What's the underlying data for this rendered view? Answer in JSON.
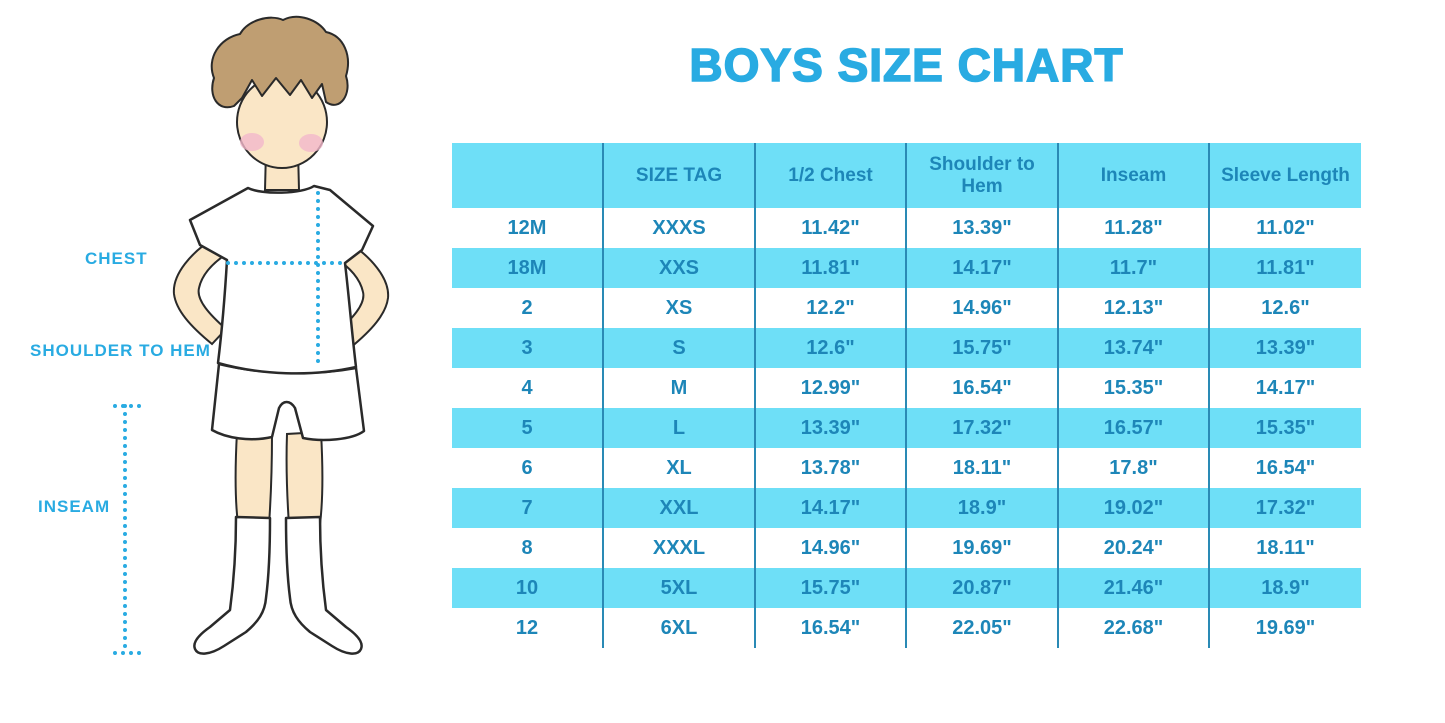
{
  "page": {
    "title": "BOYS SIZE CHART"
  },
  "figure": {
    "labels": {
      "chest": "CHEST",
      "shoulder_to_hem": "SHOULDER TO HEM",
      "inseam": "INSEAM"
    }
  },
  "table": {
    "headers": [
      "",
      "SIZE TAG",
      "1/2 Chest",
      "Shoulder to Hem",
      "Inseam",
      "Sleeve Length"
    ],
    "rows": [
      {
        "cells": [
          "12M",
          "XXXS",
          "11.42\"",
          "13.39\"",
          "11.28\"",
          "11.02\""
        ]
      },
      {
        "cells": [
          "18M",
          "XXS",
          "11.81\"",
          "14.17\"",
          "11.7\"",
          "11.81\""
        ]
      },
      {
        "cells": [
          "2",
          "XS",
          "12.2\"",
          "14.96\"",
          "12.13\"",
          "12.6\""
        ]
      },
      {
        "cells": [
          "3",
          "S",
          "12.6\"",
          "15.75\"",
          "13.74\"",
          "13.39\""
        ]
      },
      {
        "cells": [
          "4",
          "M",
          "12.99\"",
          "16.54\"",
          "15.35\"",
          "14.17\""
        ]
      },
      {
        "cells": [
          "5",
          "L",
          "13.39\"",
          "17.32\"",
          "16.57\"",
          "15.35\""
        ]
      },
      {
        "cells": [
          "6",
          "XL",
          "13.78\"",
          "18.11\"",
          "17.8\"",
          "16.54\""
        ]
      },
      {
        "cells": [
          "7",
          "XXL",
          "14.17\"",
          "18.9\"",
          "19.02\"",
          "17.32\""
        ]
      },
      {
        "cells": [
          "8",
          "XXXL",
          "14.96\"",
          "19.69\"",
          "20.24\"",
          "18.11\""
        ]
      },
      {
        "cells": [
          "10",
          "5XL",
          "15.75\"",
          "20.87\"",
          "21.46\"",
          "18.9\""
        ]
      },
      {
        "cells": [
          "12",
          "6XL",
          "16.54\"",
          "22.05\"",
          "22.68\"",
          "19.69\""
        ]
      }
    ]
  },
  "colors": {
    "accent_blue": "#29abe2",
    "table_fill": "#6edff7",
    "table_line": "#2a8ab5",
    "table_text": "#1d86b8",
    "skin": "#fae6c6",
    "hair": "#bf9e72",
    "blush": "#f3b8ca",
    "outline": "#2a2a2a"
  },
  "chart_data": {
    "type": "table",
    "title": "BOYS SIZE CHART",
    "columns": [
      "",
      "SIZE TAG",
      "1/2 Chest",
      "Shoulder to Hem",
      "Inseam",
      "Sleeve Length"
    ],
    "rows": [
      [
        "12M",
        "XXXS",
        "11.42\"",
        "13.39\"",
        "11.28\"",
        "11.02\""
      ],
      [
        "18M",
        "XXS",
        "11.81\"",
        "14.17\"",
        "11.7\"",
        "11.81\""
      ],
      [
        "2",
        "XS",
        "12.2\"",
        "14.96\"",
        "12.13\"",
        "12.6\""
      ],
      [
        "3",
        "S",
        "12.6\"",
        "15.75\"",
        "13.74\"",
        "13.39\""
      ],
      [
        "4",
        "M",
        "12.99\"",
        "16.54\"",
        "15.35\"",
        "14.17\""
      ],
      [
        "5",
        "L",
        "13.39\"",
        "17.32\"",
        "16.57\"",
        "15.35\""
      ],
      [
        "6",
        "XL",
        "13.78\"",
        "18.11\"",
        "17.8\"",
        "16.54\""
      ],
      [
        "7",
        "XXL",
        "14.17\"",
        "18.9\"",
        "19.02\"",
        "17.32\""
      ],
      [
        "8",
        "XXXL",
        "14.96\"",
        "19.69\"",
        "20.24\"",
        "18.11\""
      ],
      [
        "10",
        "5XL",
        "15.75\"",
        "20.87\"",
        "21.46\"",
        "18.9\""
      ],
      [
        "12",
        "6XL",
        "16.54\"",
        "22.05\"",
        "22.68\"",
        "19.69\""
      ]
    ],
    "measurement_guides": [
      "CHEST",
      "SHOULDER TO HEM",
      "INSEAM"
    ],
    "legend_position": "none",
    "grid": "row-stripes"
  }
}
